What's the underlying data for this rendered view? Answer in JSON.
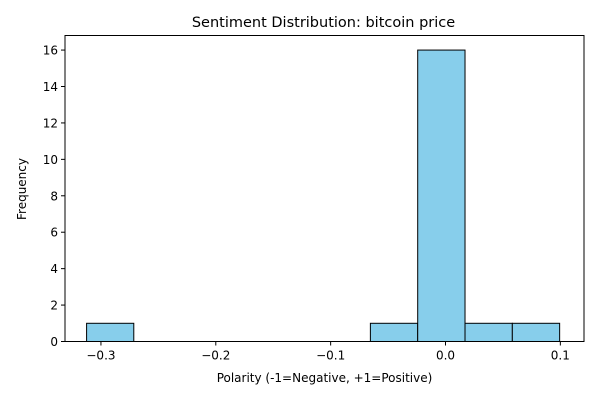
{
  "chart_data": {
    "type": "bar",
    "title": "Sentiment Distribution: bitcoin price",
    "xlabel": "Polarity (-1=Negative, +1=Positive)",
    "ylabel": "Frequency",
    "xlim": [
      -0.3313,
      0.1206
    ],
    "ylim": [
      0,
      16.8
    ],
    "bar_color": "#87ceeb",
    "edge_color": "#000000",
    "bins": [
      {
        "x0": -0.3125,
        "x1": -0.2714,
        "count": 1
      },
      {
        "x0": -0.2714,
        "x1": -0.2302,
        "count": 0
      },
      {
        "x0": -0.2302,
        "x1": -0.189,
        "count": 0
      },
      {
        "x0": -0.189,
        "x1": -0.1478,
        "count": 0
      },
      {
        "x0": -0.1478,
        "x1": -0.1066,
        "count": 0
      },
      {
        "x0": -0.1066,
        "x1": -0.0654,
        "count": 0
      },
      {
        "x0": -0.0654,
        "x1": -0.0242,
        "count": 1
      },
      {
        "x0": -0.0242,
        "x1": 0.017,
        "count": 16
      },
      {
        "x0": 0.017,
        "x1": 0.0582,
        "count": 1
      },
      {
        "x0": 0.0582,
        "x1": 0.0994,
        "count": 1
      }
    ],
    "xticks": [
      {
        "value": -0.3,
        "label": "−0.3"
      },
      {
        "value": -0.2,
        "label": "−0.2"
      },
      {
        "value": -0.1,
        "label": "−0.1"
      },
      {
        "value": 0.0,
        "label": "0.0"
      },
      {
        "value": 0.1,
        "label": "0.1"
      }
    ],
    "yticks": [
      {
        "value": 0,
        "label": "0"
      },
      {
        "value": 2,
        "label": "2"
      },
      {
        "value": 4,
        "label": "4"
      },
      {
        "value": 6,
        "label": "6"
      },
      {
        "value": 8,
        "label": "8"
      },
      {
        "value": 10,
        "label": "10"
      },
      {
        "value": 12,
        "label": "12"
      },
      {
        "value": 14,
        "label": "14"
      },
      {
        "value": 16,
        "label": "16"
      }
    ],
    "grid": false,
    "legend": "none"
  }
}
